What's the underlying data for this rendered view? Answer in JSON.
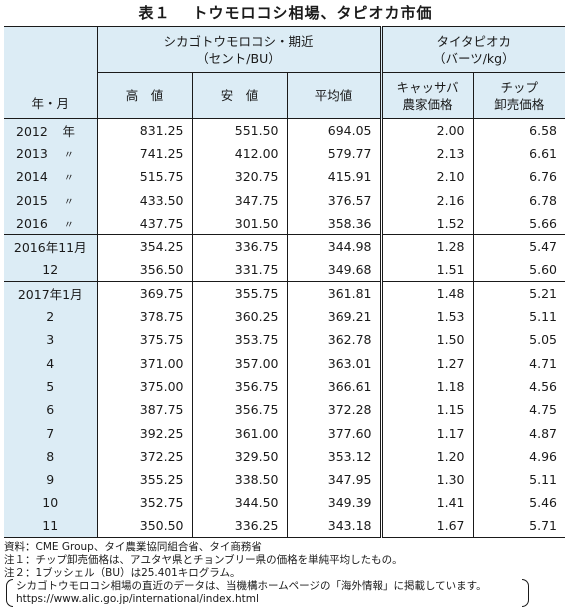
{
  "title": {
    "number": "表１",
    "text": "トウモロコシ相場、タピオカ市価"
  },
  "header": {
    "row_label": "年・月",
    "corn_group": "シカゴトウモロコシ・期近",
    "corn_unit": "（セント/BU）",
    "tapioca_group": "タイタピオカ",
    "tapioca_unit": "（バーツ/kg）",
    "col_high": "高　値",
    "col_low": "安　値",
    "col_avg": "平均値",
    "col_cassava_1": "キャッサバ",
    "col_cassava_2": "農家価格",
    "col_chip_1": "チップ",
    "col_chip_2": "卸売価格"
  },
  "rows": [
    {
      "label": "2012",
      "suffix": "年",
      "high": "831.25",
      "low": "551.50",
      "avg": "694.05",
      "cassava": "2.00",
      "chip": "6.58"
    },
    {
      "label": "2013",
      "suffix": "〃",
      "high": "741.25",
      "low": "412.00",
      "avg": "579.77",
      "cassava": "2.13",
      "chip": "6.61"
    },
    {
      "label": "2014",
      "suffix": "〃",
      "high": "515.75",
      "low": "320.75",
      "avg": "415.91",
      "cassava": "2.10",
      "chip": "6.76"
    },
    {
      "label": "2015",
      "suffix": "〃",
      "high": "433.50",
      "low": "347.75",
      "avg": "376.57",
      "cassava": "2.16",
      "chip": "6.78"
    },
    {
      "label": "2016",
      "suffix": "〃",
      "high": "437.75",
      "low": "301.50",
      "avg": "358.36",
      "cassava": "1.52",
      "chip": "5.66"
    },
    {
      "label": "2016年11月",
      "suffix": "",
      "high": "354.25",
      "low": "336.75",
      "avg": "344.98",
      "cassava": "1.28",
      "chip": "5.47"
    },
    {
      "label": "12",
      "suffix": "",
      "high": "356.50",
      "low": "331.75",
      "avg": "349.68",
      "cassava": "1.51",
      "chip": "5.60"
    },
    {
      "label": "2017年1月",
      "suffix": "",
      "high": "369.75",
      "low": "355.75",
      "avg": "361.81",
      "cassava": "1.48",
      "chip": "5.21"
    },
    {
      "label": "2",
      "suffix": "",
      "high": "378.75",
      "low": "360.25",
      "avg": "369.21",
      "cassava": "1.53",
      "chip": "5.11"
    },
    {
      "label": "3",
      "suffix": "",
      "high": "375.75",
      "low": "353.75",
      "avg": "362.78",
      "cassava": "1.50",
      "chip": "5.05"
    },
    {
      "label": "4",
      "suffix": "",
      "high": "371.00",
      "low": "357.00",
      "avg": "363.01",
      "cassava": "1.27",
      "chip": "4.71"
    },
    {
      "label": "5",
      "suffix": "",
      "high": "375.00",
      "low": "356.75",
      "avg": "366.61",
      "cassava": "1.18",
      "chip": "4.56"
    },
    {
      "label": "6",
      "suffix": "",
      "high": "387.75",
      "low": "356.75",
      "avg": "372.28",
      "cassava": "1.15",
      "chip": "4.75"
    },
    {
      "label": "7",
      "suffix": "",
      "high": "392.25",
      "low": "361.00",
      "avg": "377.60",
      "cassava": "1.17",
      "chip": "4.87"
    },
    {
      "label": "8",
      "suffix": "",
      "high": "372.25",
      "low": "329.50",
      "avg": "353.12",
      "cassava": "1.20",
      "chip": "4.96"
    },
    {
      "label": "9",
      "suffix": "",
      "high": "355.25",
      "low": "338.50",
      "avg": "347.95",
      "cassava": "1.30",
      "chip": "5.11"
    },
    {
      "label": "10",
      "suffix": "",
      "high": "352.75",
      "low": "344.50",
      "avg": "349.39",
      "cassava": "1.41",
      "chip": "5.46"
    },
    {
      "label": "11",
      "suffix": "",
      "high": "350.50",
      "low": "336.25",
      "avg": "343.18",
      "cassava": "1.67",
      "chip": "5.71"
    }
  ],
  "notes": {
    "source": "資料：CME Group、タイ農業協同組合省、タイ商務省",
    "note1": "注１：チップ卸売価格は、アユタヤ県とチョンブリー県の価格を単純平均したもの。",
    "note2": "注２：1ブッシェル（BU）は25.401キログラム。",
    "paren_line1": "シカゴトウモロコシ相場の直近のデータは、当機構ホームページの「海外情報」に掲載しています。",
    "paren_line2": "https://www.alic.go.jp/international/index.html"
  },
  "colors": {
    "header_bg": "#dcecf5",
    "label_bg": "#dcecf5",
    "border": "#1a1a1a"
  }
}
